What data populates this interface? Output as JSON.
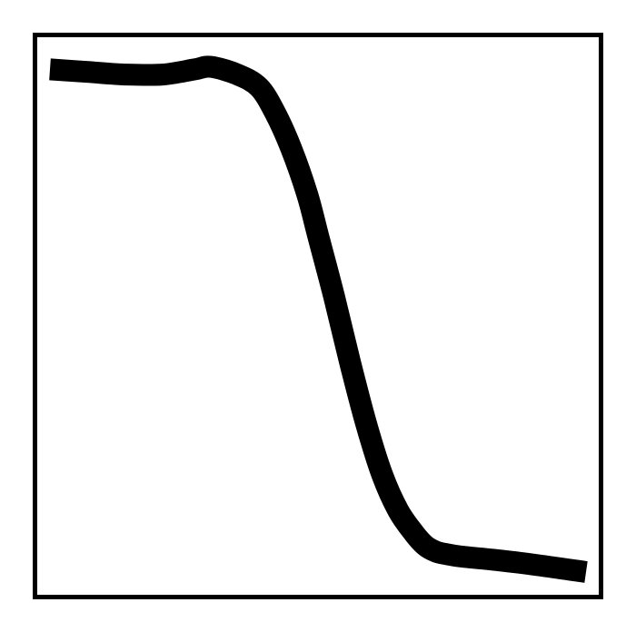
{
  "chart_data": {
    "type": "line",
    "title": "",
    "xlabel": "",
    "ylabel": "",
    "xlim": [
      0,
      1
    ],
    "ylim": [
      0,
      1
    ],
    "grid": false,
    "series": [
      {
        "color": "#000000",
        "x": [
          0.0,
          0.07,
          0.14,
          0.21,
          0.27,
          0.3,
          0.35,
          0.39,
          0.42,
          0.45,
          0.48,
          0.5,
          0.53,
          0.56,
          0.59,
          0.62,
          0.65,
          0.68,
          0.7,
          0.72,
          0.74,
          0.77,
          0.82,
          0.9,
          1.0
        ],
        "y": [
          0.985,
          0.98,
          0.975,
          0.975,
          0.985,
          0.99,
          0.975,
          0.95,
          0.9,
          0.83,
          0.74,
          0.66,
          0.54,
          0.41,
          0.29,
          0.19,
          0.12,
          0.075,
          0.052,
          0.04,
          0.035,
          0.03,
          0.025,
          0.015,
          0.0
        ]
      }
    ]
  }
}
